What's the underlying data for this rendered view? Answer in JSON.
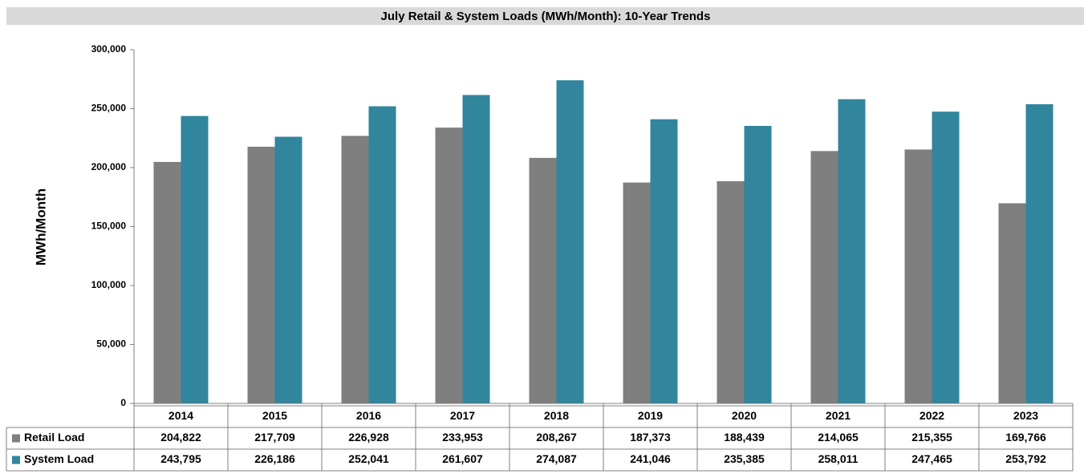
{
  "chart_data": {
    "type": "bar",
    "title": "July Retail & System Loads (MWh/Month): 10-Year Trends",
    "y_axis_label": "MWh/Month",
    "categories": [
      "2014",
      "2015",
      "2016",
      "2017",
      "2018",
      "2019",
      "2020",
      "2021",
      "2022",
      "2023"
    ],
    "series": [
      {
        "name": "Retail Load",
        "color": "#7f7f7f",
        "values": [
          204822,
          217709,
          226928,
          233953,
          208267,
          187373,
          188439,
          214065,
          215355,
          169766
        ],
        "value_labels": [
          "204,822",
          "217,709",
          "226,928",
          "233,953",
          "208,267",
          "187,373",
          "188,439",
          "214,065",
          "215,355",
          "169,766"
        ]
      },
      {
        "name": "System Load",
        "color": "#31859c",
        "values": [
          243795,
          226186,
          252041,
          261607,
          274087,
          241046,
          235385,
          258011,
          247465,
          253792
        ],
        "value_labels": [
          "243,795",
          "226,186",
          "252,041",
          "261,607",
          "274,087",
          "241,046",
          "235,385",
          "258,011",
          "247,465",
          "253,792"
        ]
      }
    ],
    "ylim": [
      0,
      300000
    ],
    "yticks": [
      0,
      {
        "value": 50000,
        "label": "50,000"
      },
      {
        "value": 100000,
        "label": "100,000"
      },
      {
        "value": 150000,
        "label": "150,000"
      },
      {
        "value": 200000,
        "label": "200,000"
      },
      {
        "value": 250000,
        "label": "250,000"
      },
      {
        "value": 300000,
        "label": "300,000"
      }
    ],
    "grid": false
  }
}
